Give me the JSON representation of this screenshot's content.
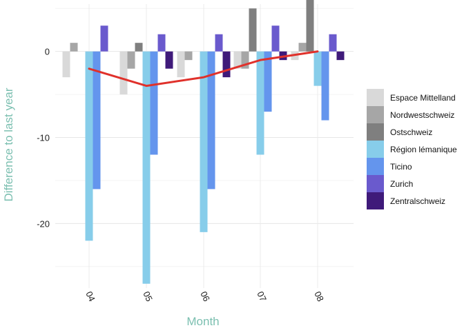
{
  "chart_data": {
    "type": "bar",
    "title": "",
    "xlabel": "Month",
    "ylabel": "Difference to last year",
    "categories": [
      "04",
      "05",
      "06",
      "07",
      "08"
    ],
    "ylim": [
      -27.5,
      5.5
    ],
    "yticks": [
      0,
      -10,
      -20
    ],
    "grid": true,
    "legend_position": "right",
    "series": [
      {
        "name": "Espace Mittelland",
        "color": "#d9d9d9",
        "values": [
          -3,
          -5,
          -3,
          -2,
          -1
        ]
      },
      {
        "name": "Nordwestschweiz",
        "color": "#a6a6a6",
        "values": [
          1,
          -2,
          -1,
          -2,
          1
        ]
      },
      {
        "name": "Ostschweiz",
        "color": "#7f7f7f",
        "values": [
          0,
          1,
          0,
          5,
          6
        ]
      },
      {
        "name": "Région lémanique",
        "color": "#87cdea",
        "values": [
          -22,
          -27,
          -21,
          -12,
          -4
        ]
      },
      {
        "name": "Ticino",
        "color": "#6495ed",
        "values": [
          -16,
          -12,
          -16,
          -7,
          -8
        ]
      },
      {
        "name": "Zurich",
        "color": "#6a5acd",
        "values": [
          3,
          2,
          2,
          3,
          2
        ]
      },
      {
        "name": "Zentralschweiz",
        "color": "#3f1a7a",
        "values": [
          0,
          -2,
          -3,
          -1,
          -1
        ]
      }
    ],
    "trend_line": {
      "color": "#e0312b",
      "values": [
        -2,
        -4,
        -3,
        -1,
        0
      ]
    }
  }
}
